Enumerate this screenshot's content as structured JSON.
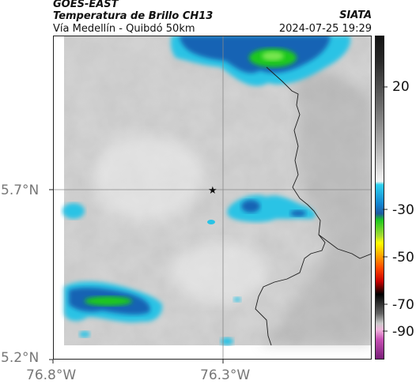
{
  "header": {
    "satellite": "GOES-EAST",
    "product": "Temperatura de Brillo CH13",
    "region": "Vía Medellín - Quibdó 50km",
    "agency": "SIATA",
    "datetime": "2024-07-25 19:29"
  },
  "axes": {
    "lat_ticks": [
      "5.7°N",
      "5.2°N"
    ],
    "lon_ticks": [
      "76.8°W",
      "76.3°W"
    ]
  },
  "colorbar": {
    "labels": [
      "20",
      "-30",
      "-50",
      "-70",
      "-90"
    ]
  },
  "colors": {
    "cloud_gray": "#d2d2d2",
    "cyan": "#29c3e5",
    "blue": "#1464b4",
    "green": "#1ec81e",
    "border_line": "#1c1c1c"
  },
  "marker": {
    "icon": "star-icon",
    "glyph": "★"
  }
}
